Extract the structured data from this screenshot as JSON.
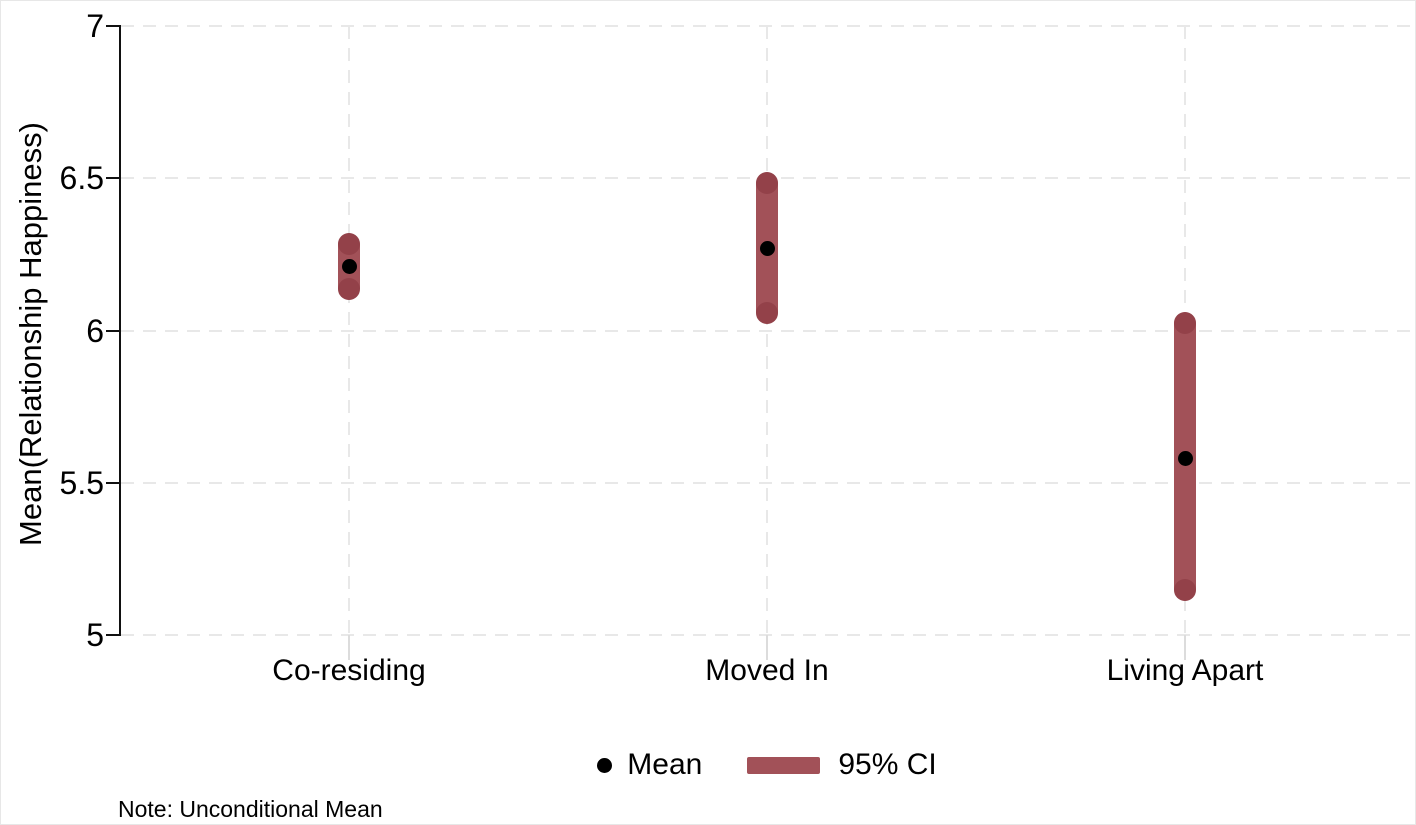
{
  "figure": {
    "ylabel": "Mean(Relationship Happiness)",
    "note": "Note: Unconditional Mean"
  },
  "legend": {
    "mean_label": "Mean",
    "ci_label": "95% CI"
  },
  "chart_data": {
    "type": "scatter",
    "subtype": "mean-with-95ci-range-bars",
    "title": "",
    "xlabel": "",
    "ylabel": "Mean(Relationship Happiness)",
    "categories": [
      "Co-residing",
      "Moved In",
      "Living Apart"
    ],
    "series": [
      {
        "name": "Mean",
        "values": [
          6.21,
          6.27,
          5.58
        ]
      },
      {
        "name": "95% CI lower",
        "values": [
          6.1,
          6.02,
          5.11
        ]
      },
      {
        "name": "95% CI upper",
        "values": [
          6.32,
          6.52,
          6.06
        ]
      }
    ],
    "ylim": [
      5,
      7
    ],
    "yticks": [
      {
        "value": 7,
        "label": "7"
      },
      {
        "value": 6.5,
        "label": "6.5"
      },
      {
        "value": 6,
        "label": "6"
      },
      {
        "value": 5.5,
        "label": "5.5"
      },
      {
        "value": 5,
        "label": "5"
      }
    ],
    "grid": true,
    "gridline_style": "dashed",
    "legend_position": "bottom",
    "note": "Note: Unconditional Mean",
    "colors": {
      "mean_dot": "#000000",
      "ci_bar": "#a25158",
      "gridline": "#e8e8e8",
      "axis": "#111111"
    }
  }
}
